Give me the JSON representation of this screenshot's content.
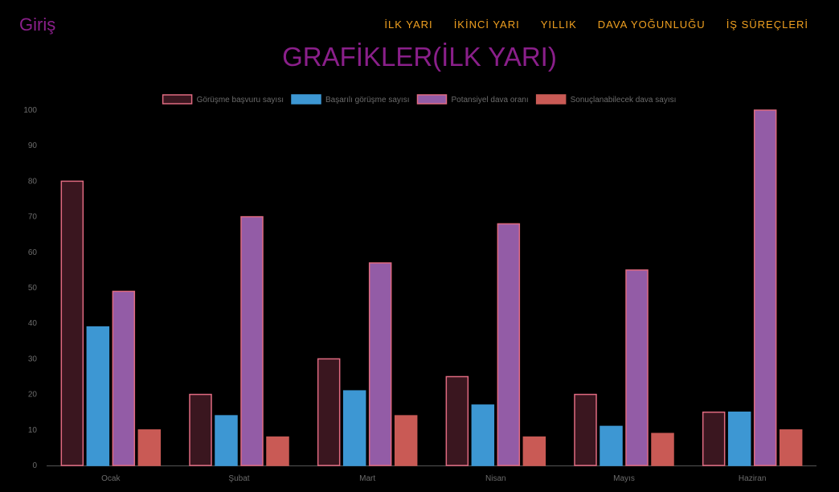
{
  "header": {
    "brand": "Giriş",
    "nav": [
      "İLK YARI",
      "İKİNCİ YARI",
      "YILLIK",
      "DAVA YOĞUNLUĞU",
      "İŞ SÜREÇLERİ"
    ]
  },
  "page_title": "GRAFİKLER(İLK YARI)",
  "colors": {
    "brand": "#8a1f8a",
    "nav": "#f0a020",
    "axis_text": "#6b6b6b",
    "baseline": "#555555"
  },
  "chart_data": {
    "type": "bar",
    "categories": [
      "Ocak",
      "Şubat",
      "Mart",
      "Nisan",
      "Mayıs",
      "Haziran"
    ],
    "ylim": [
      0,
      100
    ],
    "yticks": [
      0,
      10,
      20,
      30,
      40,
      50,
      60,
      70,
      80,
      90,
      100
    ],
    "legend_position": "top",
    "grid": false,
    "series": [
      {
        "name": "Görüşme başvuru sayısı",
        "fill": "#3a161f",
        "stroke": "#e06a80",
        "values": [
          80,
          20,
          30,
          25,
          20,
          15
        ]
      },
      {
        "name": "Başarılı görüşme sayısı",
        "fill": "#3d97d3",
        "stroke": "#3d97d3",
        "values": [
          39,
          14,
          21,
          17,
          11,
          15
        ]
      },
      {
        "name": "Potansiyel dava oranı",
        "fill": "#935ca6",
        "stroke": "#e06a80",
        "values": [
          49,
          70,
          57,
          68,
          55,
          100
        ]
      },
      {
        "name": "Sonuçlanabilecek dava sayısı",
        "fill": "#c95a55",
        "stroke": "#c95a55",
        "values": [
          10,
          8,
          14,
          8,
          9,
          10
        ]
      }
    ]
  }
}
